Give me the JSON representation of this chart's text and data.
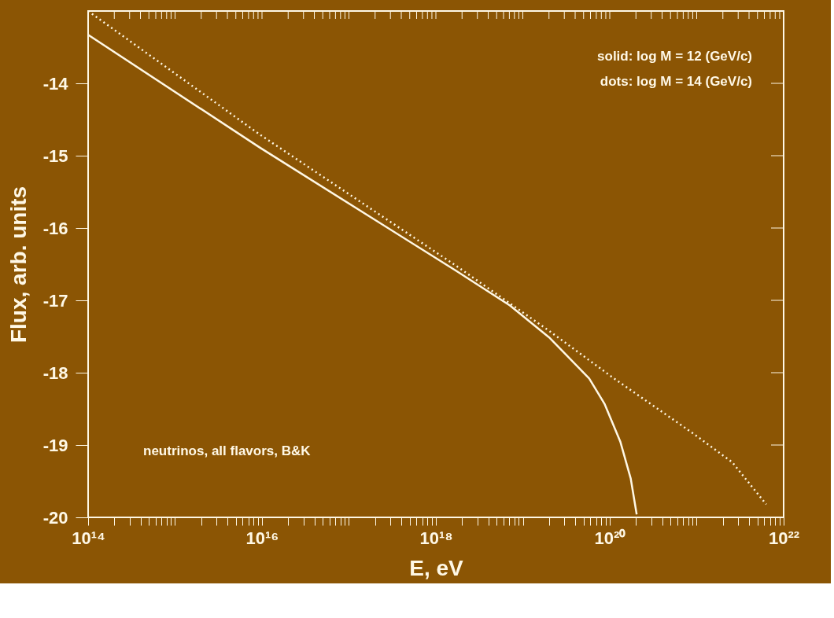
{
  "chart_data": {
    "type": "line",
    "xlabel": "E, eV",
    "ylabel": "Flux, arb. units",
    "log": "x",
    "grid": false,
    "marker": "none",
    "xlim": [
      100000000000000.0,
      1e+22
    ],
    "ylim": [
      -20,
      -13
    ],
    "yticks": [
      -20,
      -19,
      -18,
      -17,
      -16,
      -15,
      -14
    ],
    "xticks": [
      {
        "value": 100000000000000.0,
        "label": "10¹⁴"
      },
      {
        "value": 200000000000000.0,
        "label": null
      },
      {
        "value": 300000000000000.0,
        "label": null
      },
      {
        "value": 400000000000000.0,
        "label": null
      },
      {
        "value": 500000000000000.0,
        "label": null
      },
      {
        "value": 600000000000000.0,
        "label": null
      },
      {
        "value": 700000000000000.0,
        "label": null
      },
      {
        "value": 800000000000000.0,
        "label": null
      },
      {
        "value": 900000000000000.0,
        "label": null
      },
      {
        "value": 1000000000000000.0,
        "label": null
      },
      {
        "value": 2000000000000000.0,
        "label": null
      },
      {
        "value": 3000000000000000.0,
        "label": null
      },
      {
        "value": 4000000000000000.0,
        "label": null
      },
      {
        "value": 5000000000000000.0,
        "label": null
      },
      {
        "value": 6000000000000000.0,
        "label": null
      },
      {
        "value": 7000000000000000.0,
        "label": null
      },
      {
        "value": 8000000000000000.0,
        "label": null
      },
      {
        "value": 9000000000000000.0,
        "label": null
      },
      {
        "value": 1e+16,
        "label": "10¹⁶"
      },
      {
        "value": 2e+16,
        "label": null
      },
      {
        "value": 3e+16,
        "label": null
      },
      {
        "value": 4e+16,
        "label": null
      },
      {
        "value": 5e+16,
        "label": null
      },
      {
        "value": 6e+16,
        "label": null
      },
      {
        "value": 7e+16,
        "label": null
      },
      {
        "value": 8e+16,
        "label": null
      },
      {
        "value": 9e+16,
        "label": null
      },
      {
        "value": 1e+17,
        "label": null
      },
      {
        "value": 2e+17,
        "label": null
      },
      {
        "value": 3e+17,
        "label": null
      },
      {
        "value": 4e+17,
        "label": null
      },
      {
        "value": 5e+17,
        "label": null
      },
      {
        "value": 6e+17,
        "label": null
      },
      {
        "value": 7e+17,
        "label": null
      },
      {
        "value": 8e+17,
        "label": null
      },
      {
        "value": 9e+17,
        "label": null
      },
      {
        "value": 1e+18,
        "label": "10¹⁸"
      },
      {
        "value": 2e+18,
        "label": null
      },
      {
        "value": 3e+18,
        "label": null
      },
      {
        "value": 4e+18,
        "label": null
      },
      {
        "value": 5e+18,
        "label": null
      },
      {
        "value": 6e+18,
        "label": null
      },
      {
        "value": 7e+18,
        "label": null
      },
      {
        "value": 8e+18,
        "label": null
      },
      {
        "value": 9e+18,
        "label": null
      },
      {
        "value": 1e+19,
        "label": null
      },
      {
        "value": 2e+19,
        "label": null
      },
      {
        "value": 3e+19,
        "label": null
      },
      {
        "value": 4e+19,
        "label": null
      },
      {
        "value": 5e+19,
        "label": null
      },
      {
        "value": 6e+19,
        "label": null
      },
      {
        "value": 7e+19,
        "label": null
      },
      {
        "value": 8e+19,
        "label": null
      },
      {
        "value": 9e+19,
        "label": null
      },
      {
        "value": 1e+20,
        "label": "10²⁰"
      },
      {
        "value": 2e+20,
        "label": null
      },
      {
        "value": 3e+20,
        "label": null
      },
      {
        "value": 4e+20,
        "label": null
      },
      {
        "value": 5e+20,
        "label": null
      },
      {
        "value": 6e+20,
        "label": null
      },
      {
        "value": 7e+20,
        "label": null
      },
      {
        "value": 8e+20,
        "label": null
      },
      {
        "value": 9e+20,
        "label": null
      },
      {
        "value": 1e+21,
        "label": null
      },
      {
        "value": 2e+21,
        "label": null
      },
      {
        "value": 3e+21,
        "label": null
      },
      {
        "value": 4e+21,
        "label": null
      },
      {
        "value": 5e+21,
        "label": null
      },
      {
        "value": 6e+21,
        "label": null
      },
      {
        "value": 7e+21,
        "label": null
      },
      {
        "value": 8e+21,
        "label": null
      },
      {
        "value": 9e+21,
        "label": null
      },
      {
        "value": 1e+22,
        "label": "10²²"
      }
    ],
    "series": [
      {
        "color": "#fff8e6",
        "line_style": "solid",
        "x": [
          100000000000000.0,
          9500000000000000.0,
          1.7e+18,
          7.1e+18,
          2e+19,
          5.8e+19,
          8.7e+19,
          1.32e+20,
          1.74e+20,
          2.04e+20
        ],
        "values": [
          -13.33,
          -14.89,
          -16.59,
          -17.07,
          -17.51,
          -18.08,
          -18.43,
          -18.95,
          -19.46,
          -19.96
        ]
      },
      {
        "color": "#fff8e6",
        "line_style": "dotted",
        "x": [
          100000000000000.0,
          9500000000000000.0,
          1.7e+18,
          2e+19,
          1.12e+20,
          9.1e+20,
          2.57e+21,
          6.3e+21
        ],
        "values": [
          -13.0,
          -14.71,
          -16.52,
          -17.42,
          -18.08,
          -18.84,
          -19.24,
          -19.82
        ]
      }
    ],
    "annotations": [
      "solid: log M = 12 (GeV/c)",
      "dots: log M = 14 (GeV/c)",
      "neutrinos, all flavors, B&K"
    ]
  }
}
